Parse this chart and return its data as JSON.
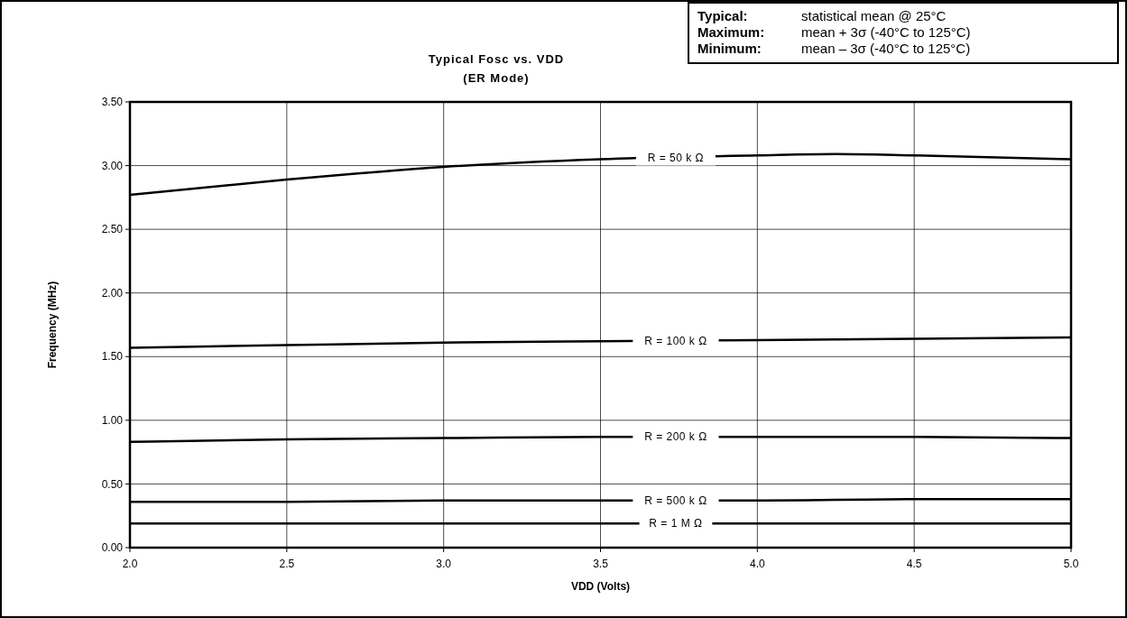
{
  "chart_data": {
    "type": "line",
    "title": "Typical Fosc vs. VDD",
    "subtitle": "(ER Mode)",
    "xlabel": "VDD (Volts)",
    "ylabel": "Frequency (MHz)",
    "x": [
      2.0,
      2.5,
      3.0,
      3.5,
      4.0,
      4.25,
      4.5,
      5.0
    ],
    "series": [
      {
        "name": "R = 50 k Ω",
        "color": "#000000",
        "values": [
          2.77,
          2.89,
          2.99,
          3.05,
          3.08,
          3.09,
          3.08,
          3.05
        ]
      },
      {
        "name": "R = 100 k Ω",
        "color": "#000000",
        "values": [
          1.57,
          1.59,
          1.61,
          1.62,
          1.63,
          1.635,
          1.64,
          1.65
        ]
      },
      {
        "name": "R = 200 k Ω",
        "color": "#000000",
        "values": [
          0.83,
          0.85,
          0.86,
          0.87,
          0.87,
          0.87,
          0.87,
          0.86
        ]
      },
      {
        "name": "R = 500 k Ω",
        "color": "#000000",
        "values": [
          0.36,
          0.36,
          0.37,
          0.37,
          0.37,
          0.375,
          0.38,
          0.38
        ]
      },
      {
        "name": "R = 1 M Ω",
        "color": "#000000",
        "values": [
          0.19,
          0.19,
          0.19,
          0.19,
          0.19,
          0.19,
          0.19,
          0.19
        ]
      }
    ],
    "xlim": [
      2.0,
      5.0
    ],
    "xticks": [
      {
        "value": 2,
        "label": "2.0"
      },
      {
        "value": 2.5,
        "label": "2.5"
      },
      {
        "value": 3,
        "label": "3.0"
      },
      {
        "value": 3.5,
        "label": "3.5"
      },
      {
        "value": 4,
        "label": "4.0"
      },
      {
        "value": 4.5,
        "label": "4.5"
      },
      {
        "value": 5,
        "label": "5.0"
      }
    ],
    "ylim": [
      0,
      3.5
    ],
    "yticks": [
      {
        "value": 0,
        "label": "0.00"
      },
      {
        "value": 0.5,
        "label": "0.50"
      },
      {
        "value": 1,
        "label": "1.00"
      },
      {
        "value": 1.5,
        "label": "1.50"
      },
      {
        "value": 2,
        "label": "2.00"
      },
      {
        "value": 2.5,
        "label": "2.50"
      },
      {
        "value": 3,
        "label": "3.00"
      },
      {
        "value": 3.5,
        "label": "3.50"
      }
    ],
    "grid": true,
    "marker": "none",
    "line_style": "solid",
    "annotations": [
      "Typical: statistical mean @ 25°C",
      "Maximum: mean + 3σ (-40°C to 125°C)",
      "Minimum: mean – 3σ (-40°C to 125°C)"
    ]
  }
}
